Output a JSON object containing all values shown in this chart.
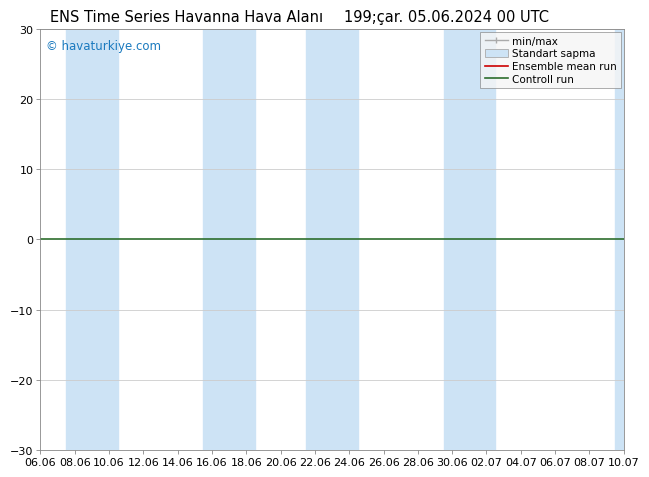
{
  "title_left": "ENS Time Series Havanna Hava Alanı",
  "title_right": "199;çar. 05.06.2024 00 UTC",
  "ylim": [
    -30,
    30
  ],
  "yticks": [
    -30,
    -20,
    -10,
    0,
    10,
    20,
    30
  ],
  "xtick_labels": [
    "06.06",
    "08.06",
    "10.06",
    "12.06",
    "14.06",
    "16.06",
    "18.06",
    "20.06",
    "22.06",
    "24.06",
    "26.06",
    "28.06",
    "30.06",
    "02.07",
    "04.07",
    "06.07",
    "08.07",
    "10.07"
  ],
  "n_xticks": 18,
  "band_color": "#cde3f5",
  "band_alpha": 1.0,
  "watermark": "© havaturkiye.com",
  "watermark_color": "#1a7abf",
  "legend_labels": [
    "min/max",
    "Standart sapma",
    "Ensemble mean run",
    "Controll run"
  ],
  "bg_color": "#ffffff",
  "grid_color": "#cccccc",
  "zero_line_color": "#2d6e2d",
  "title_fontsize": 10.5,
  "tick_fontsize": 8,
  "shade_ranges": [
    [
      0.75,
      2.25
    ],
    [
      4.75,
      6.25
    ],
    [
      7.75,
      9.25
    ],
    [
      11.75,
      13.25
    ],
    [
      16.75,
      17.5
    ]
  ]
}
